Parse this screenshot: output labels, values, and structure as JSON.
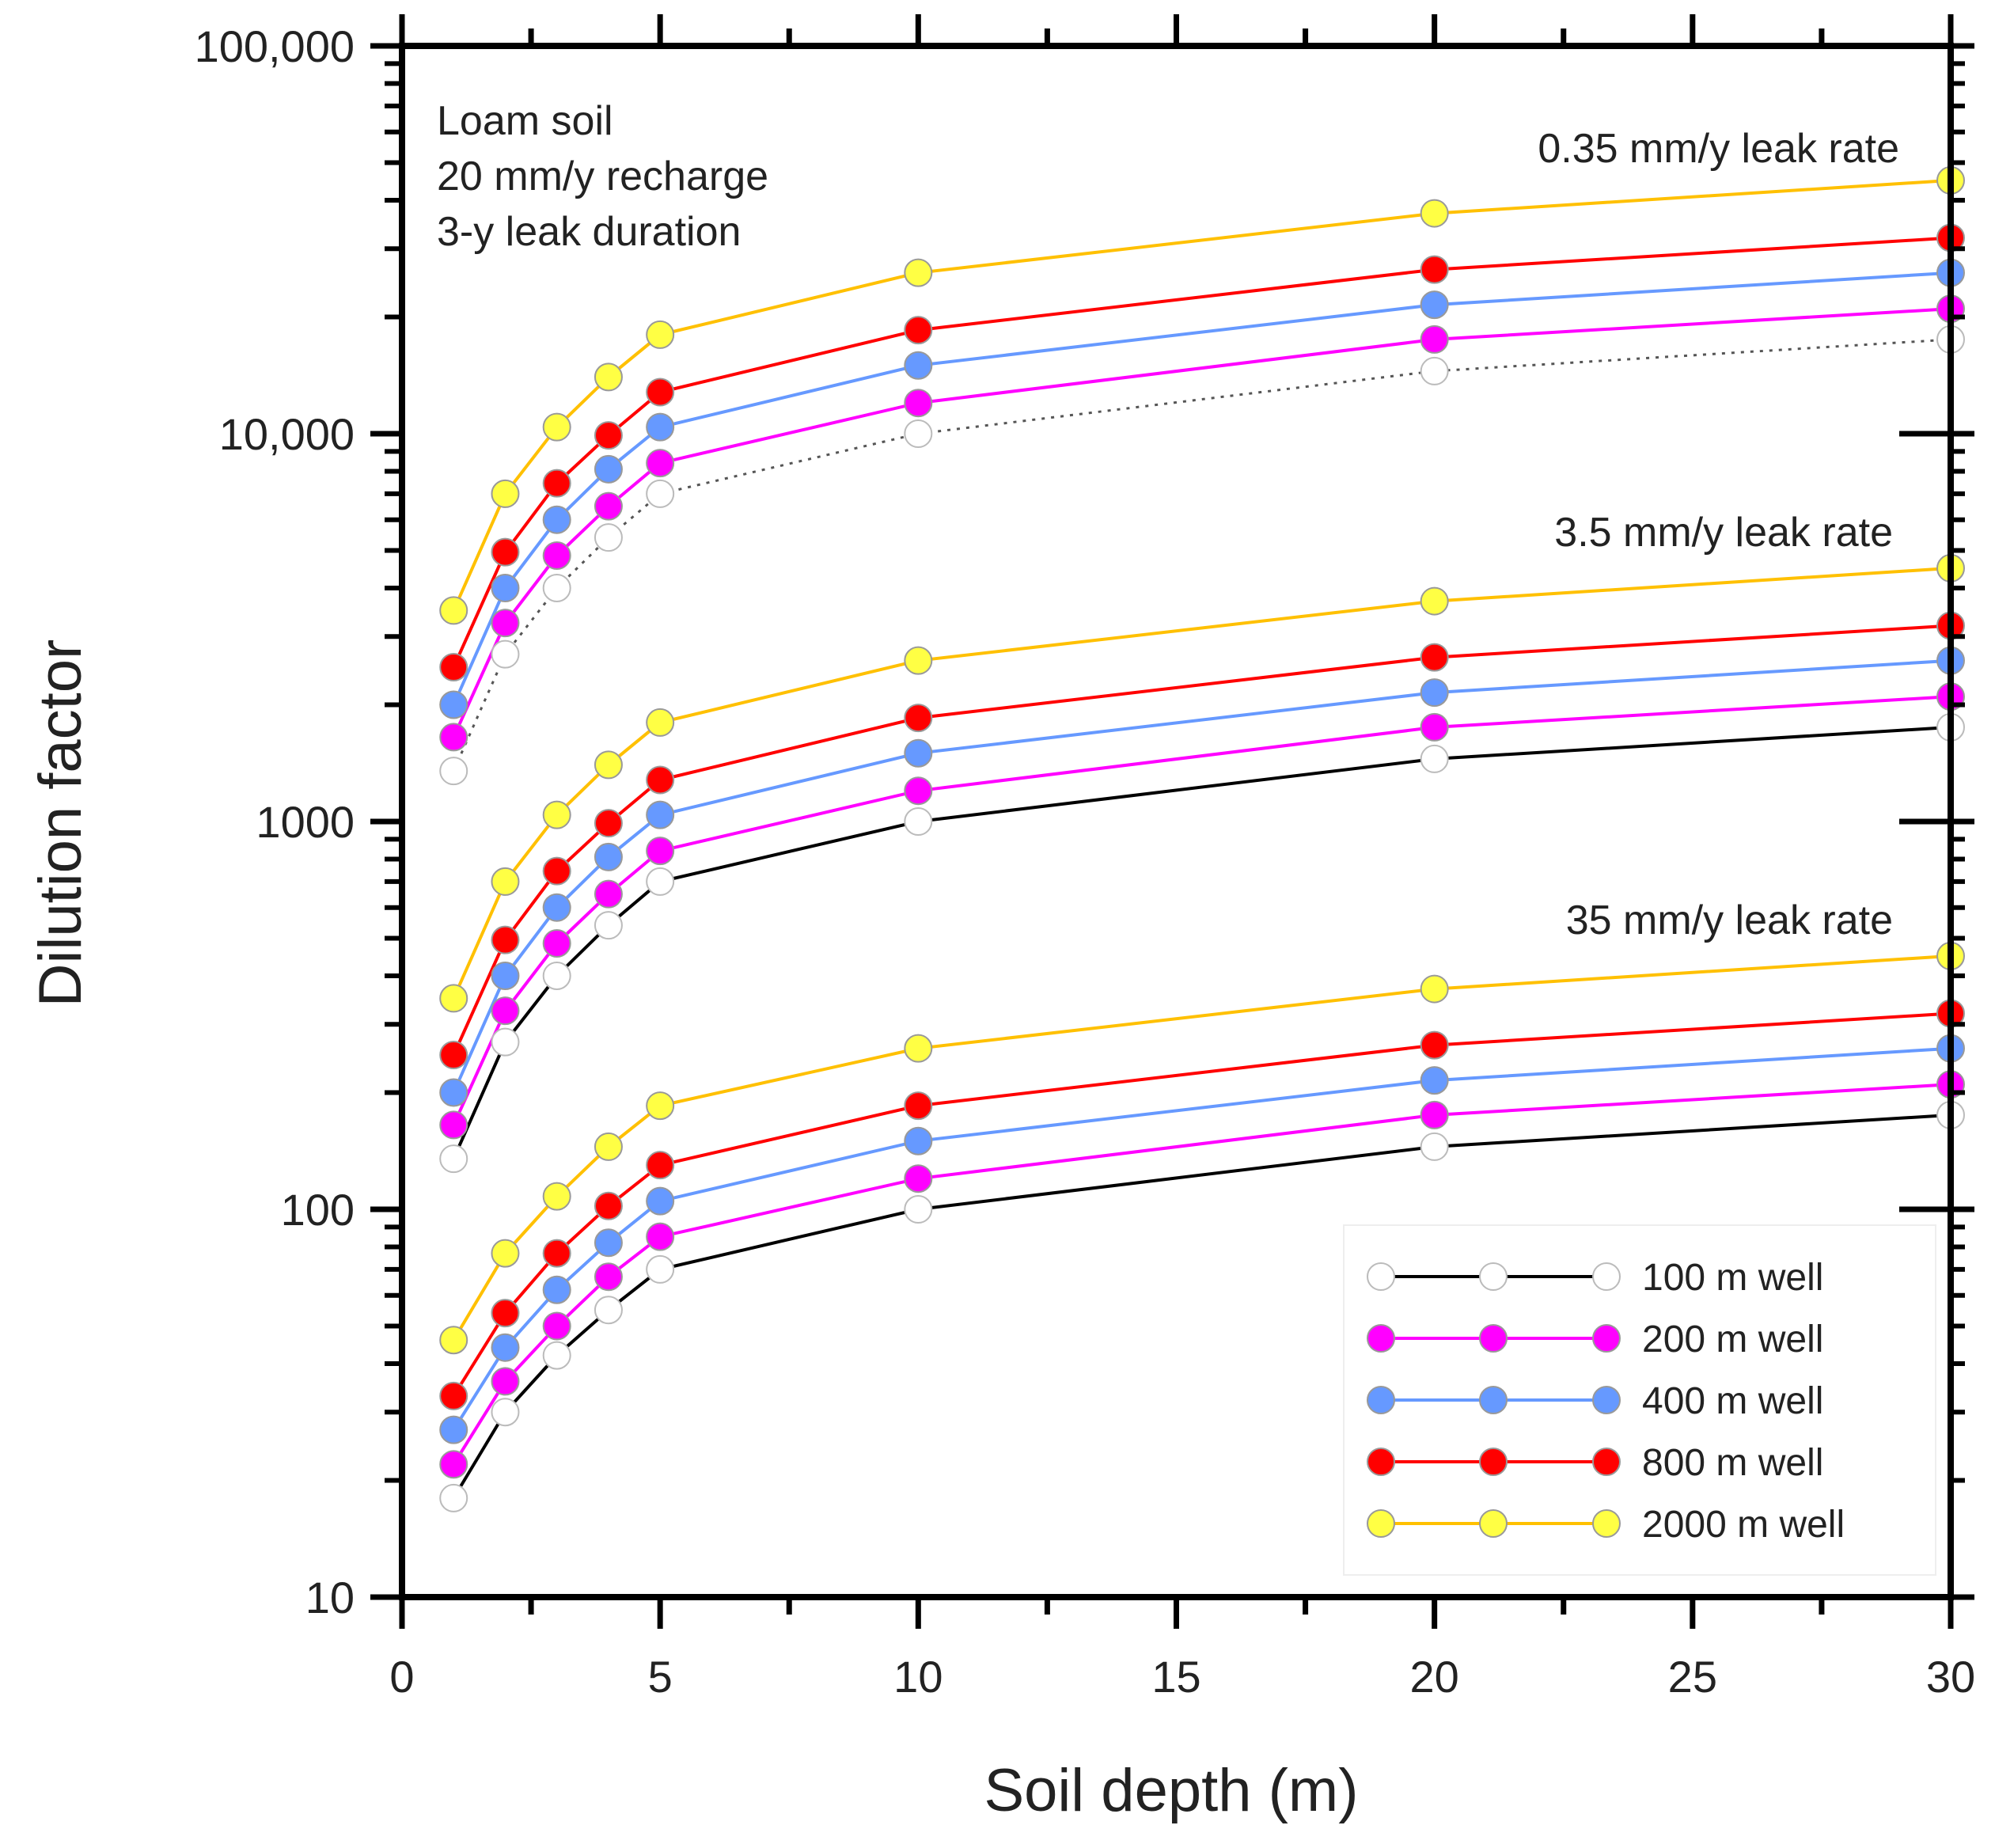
{
  "chart_data": {
    "type": "line",
    "xlabel": "Soil depth (m)",
    "ylabel": "Dilution factor",
    "xlim": [
      0,
      30
    ],
    "ylim": [
      10,
      100000
    ],
    "yscale": "log",
    "x_ticks": [
      0,
      5,
      10,
      15,
      20,
      25,
      30
    ],
    "x_tick_labels": [
      "0",
      "5",
      "10",
      "15",
      "20",
      "25",
      "30"
    ],
    "y_ticks": [
      10,
      100,
      1000,
      10000,
      100000
    ],
    "y_tick_labels": [
      "10",
      "100",
      "1000",
      "10,000",
      "100,000"
    ],
    "x": [
      1,
      2,
      3,
      4,
      5,
      10,
      20,
      30
    ],
    "annotations": {
      "conditions": [
        "Loam soil",
        "20 mm/y recharge",
        "3-y leak duration"
      ],
      "group_labels": [
        "0.35 mm/y leak rate",
        "3.5 mm/y leak rate",
        "35 mm/y leak rate"
      ]
    },
    "legend_position": "bottom-right",
    "wells": [
      {
        "name": "100 m well",
        "marker_color": "#ffffff",
        "line_color": "#000000"
      },
      {
        "name": "200 m well",
        "marker_color": "#ff00ff",
        "line_color": "#ff00ff"
      },
      {
        "name": "400 m well",
        "marker_color": "#6699ff",
        "line_color": "#6699ff"
      },
      {
        "name": "800 m well",
        "marker_color": "#ff0000",
        "line_color": "#ff0000"
      },
      {
        "name": "2000 m well",
        "marker_color": "#ffff44",
        "line_color": "#ffc000"
      }
    ],
    "series": [
      {
        "group": "0.35 mm/y leak rate",
        "well": "100 m well",
        "values": [
          1350,
          2700,
          4000,
          5400,
          7000,
          10000,
          14500,
          17500
        ]
      },
      {
        "group": "0.35 mm/y leak rate",
        "well": "200 m well",
        "values": [
          1650,
          3250,
          4850,
          6500,
          8400,
          12000,
          17500,
          21000
        ]
      },
      {
        "group": "0.35 mm/y leak rate",
        "well": "400 m well",
        "values": [
          2000,
          4000,
          6000,
          8100,
          10400,
          15000,
          21500,
          26000
        ]
      },
      {
        "group": "0.35 mm/y leak rate",
        "well": "800 m well",
        "values": [
          2500,
          4950,
          7450,
          9900,
          12800,
          18500,
          26500,
          32000
        ]
      },
      {
        "group": "0.35 mm/y leak rate",
        "well": "2000 m well",
        "values": [
          3500,
          7000,
          10400,
          14000,
          18000,
          26000,
          37000,
          45000
        ]
      },
      {
        "group": "3.5 mm/y leak rate",
        "well": "100 m well",
        "values": [
          135,
          270,
          400,
          540,
          700,
          1000,
          1450,
          1750
        ]
      },
      {
        "group": "3.5 mm/y leak rate",
        "well": "200 m well",
        "values": [
          165,
          325,
          485,
          650,
          840,
          1200,
          1750,
          2100
        ]
      },
      {
        "group": "3.5 mm/y leak rate",
        "well": "400 m well",
        "values": [
          200,
          400,
          600,
          810,
          1040,
          1500,
          2150,
          2600
        ]
      },
      {
        "group": "3.5 mm/y leak rate",
        "well": "800 m well",
        "values": [
          250,
          495,
          745,
          990,
          1280,
          1850,
          2650,
          3200
        ]
      },
      {
        "group": "3.5 mm/y leak rate",
        "well": "2000 m well",
        "values": [
          350,
          700,
          1040,
          1400,
          1800,
          2600,
          3700,
          4500
        ]
      },
      {
        "group": "35 mm/y leak rate",
        "well": "100 m well",
        "values": [
          18,
          30,
          42,
          55,
          70,
          100,
          145,
          175
        ]
      },
      {
        "group": "35 mm/y leak rate",
        "well": "200 m well",
        "values": [
          22,
          36,
          50,
          67,
          85,
          120,
          175,
          210
        ]
      },
      {
        "group": "35 mm/y leak rate",
        "well": "400 m well",
        "values": [
          27,
          44,
          62,
          82,
          105,
          150,
          215,
          260
        ]
      },
      {
        "group": "35 mm/y leak rate",
        "well": "800 m well",
        "values": [
          33,
          54,
          77,
          102,
          130,
          185,
          265,
          320
        ]
      },
      {
        "group": "35 mm/y leak rate",
        "well": "2000 m well",
        "values": [
          46,
          77,
          108,
          145,
          185,
          260,
          370,
          450
        ]
      }
    ]
  }
}
